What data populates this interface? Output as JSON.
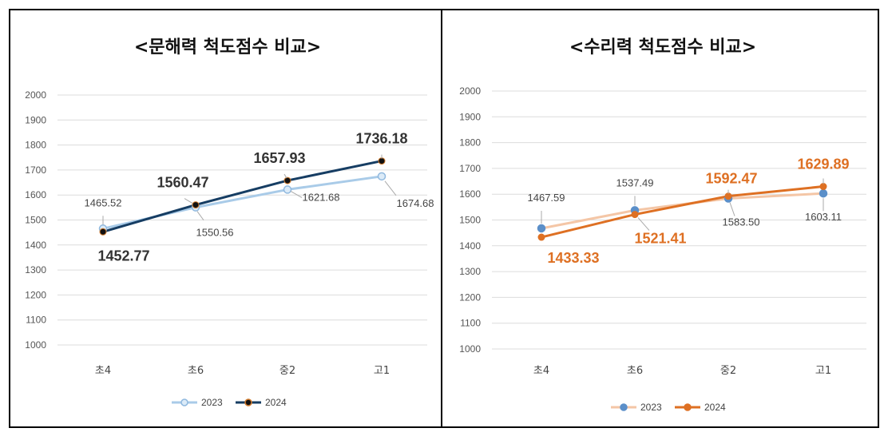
{
  "chart_data": [
    {
      "type": "line",
      "title": "<문해력 척도점수 비교>",
      "categories": [
        "초4",
        "초6",
        "중2",
        "고1"
      ],
      "ylim": [
        1000,
        2000
      ],
      "yticks": [
        "1000",
        "1100",
        "1200",
        "1300",
        "1400",
        "1500",
        "1600",
        "1700",
        "1800",
        "1900",
        "2000"
      ],
      "grid": true,
      "legend_position": "bottom",
      "series": [
        {
          "name": "2023",
          "values": [
            1465.52,
            1550.56,
            1621.68,
            1674.68
          ],
          "labels": [
            "1465.52",
            "1550.56",
            "1621.68",
            "1674.68"
          ],
          "color": "#a9cbe8",
          "marker_fill": "#dcebf8",
          "marker_stroke": "#8fb8de",
          "label_color": "#444444"
        },
        {
          "name": "2024",
          "values": [
            1452.77,
            1560.47,
            1657.93,
            1736.18
          ],
          "labels": [
            "1452.77",
            "1560.47",
            "1657.93",
            "1736.18"
          ],
          "color": "#163d63",
          "marker_fill": "#111111",
          "marker_stroke": "#d07a2c",
          "label_color": "#333333"
        }
      ]
    },
    {
      "type": "line",
      "title": "<수리력 척도점수 비교>",
      "categories": [
        "초4",
        "초6",
        "중2",
        "고1"
      ],
      "ylim": [
        1000,
        2000
      ],
      "yticks": [
        "1000",
        "1100",
        "1200",
        "1300",
        "1400",
        "1500",
        "1600",
        "1700",
        "1800",
        "1900",
        "2000"
      ],
      "grid": true,
      "legend_position": "bottom",
      "series": [
        {
          "name": "2023",
          "values": [
            1467.59,
            1537.49,
            1583.5,
            1603.11
          ],
          "labels": [
            "1467.59",
            "1537.49",
            "1583.50",
            "1603.11"
          ],
          "color": "#f4c6a6",
          "marker_fill": "#5b8fc9",
          "marker_stroke": "#5b8fc9",
          "label_color": "#444444"
        },
        {
          "name": "2024",
          "values": [
            1433.33,
            1521.41,
            1592.47,
            1629.89
          ],
          "labels": [
            "1433.33",
            "1521.41",
            "1592.47",
            "1629.89"
          ],
          "color": "#de7023",
          "marker_fill": "#de7023",
          "marker_stroke": "#de7023",
          "label_color": "#de7023"
        }
      ]
    }
  ]
}
